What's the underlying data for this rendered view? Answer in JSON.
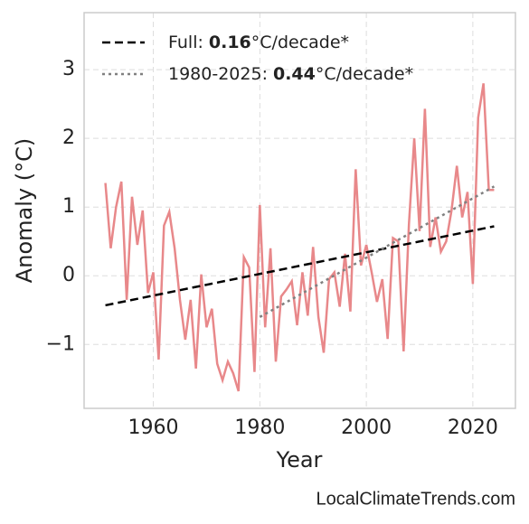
{
  "chart_data": {
    "type": "line",
    "xlabel": "Year",
    "ylabel": "Anomaly (°C)",
    "watermark": "LocalClimateTrends.com",
    "xlim": [
      1947,
      2028
    ],
    "ylim": [
      -1.93,
      3.83
    ],
    "xticks": [
      1960,
      1980,
      2000,
      2020
    ],
    "yticks": [
      {
        "value": -1,
        "label": "−1"
      },
      0,
      1,
      2,
      3
    ],
    "grid": true,
    "legend": "upper left",
    "series": [
      {
        "name": "Anomaly",
        "color": "#e8888a",
        "x": [
          1951,
          1952,
          1953,
          1954,
          1955,
          1956,
          1957,
          1958,
          1959,
          1960,
          1961,
          1962,
          1963,
          1964,
          1965,
          1966,
          1967,
          1968,
          1969,
          1970,
          1971,
          1972,
          1973,
          1974,
          1975,
          1976,
          1977,
          1978,
          1979,
          1980,
          1981,
          1982,
          1983,
          1984,
          1985,
          1986,
          1987,
          1988,
          1989,
          1990,
          1991,
          1992,
          1993,
          1994,
          1995,
          1996,
          1997,
          1998,
          1999,
          2000,
          2001,
          2002,
          2003,
          2004,
          2005,
          2006,
          2007,
          2008,
          2009,
          2010,
          2011,
          2012,
          2013,
          2014,
          2015,
          2016,
          2017,
          2018,
          2019,
          2020,
          2021,
          2022,
          2023,
          2024
        ],
        "values": [
          1.35,
          0.4,
          1.0,
          1.37,
          -0.35,
          1.15,
          0.45,
          0.95,
          -0.25,
          0.05,
          -1.22,
          0.73,
          0.93,
          0.4,
          -0.35,
          -0.93,
          -0.35,
          -1.35,
          0.02,
          -0.75,
          -0.48,
          -1.28,
          -1.52,
          -1.25,
          -1.42,
          -1.68,
          0.27,
          0.12,
          -1.4,
          1.03,
          -0.75,
          0.4,
          -1.25,
          -0.3,
          -0.2,
          -0.08,
          -0.72,
          0.05,
          -0.58,
          0.42,
          -0.6,
          -1.12,
          -0.05,
          0.05,
          -0.45,
          0.32,
          -0.52,
          1.55,
          0.15,
          0.45,
          0.05,
          -0.38,
          -0.05,
          -0.92,
          0.55,
          0.5,
          -1.1,
          0.75,
          2.0,
          0.65,
          2.43,
          0.42,
          0.85,
          0.35,
          0.5,
          0.95,
          1.6,
          0.85,
          1.22,
          -0.12,
          2.3,
          2.8,
          1.25,
          1.25
        ]
      },
      {
        "name": "Full:",
        "rate": 0.16,
        "unit": "°C/decade*",
        "color": "#000000",
        "style": "dashed",
        "x": [
          1951,
          2024
        ],
        "values": [
          -0.43,
          0.72
        ]
      },
      {
        "name": "1980-2025:",
        "rate": 0.44,
        "unit": "°C/decade*",
        "color": "#808080",
        "style": "dotted",
        "x": [
          1980,
          2024
        ],
        "values": [
          -0.6,
          1.3
        ]
      }
    ]
  }
}
